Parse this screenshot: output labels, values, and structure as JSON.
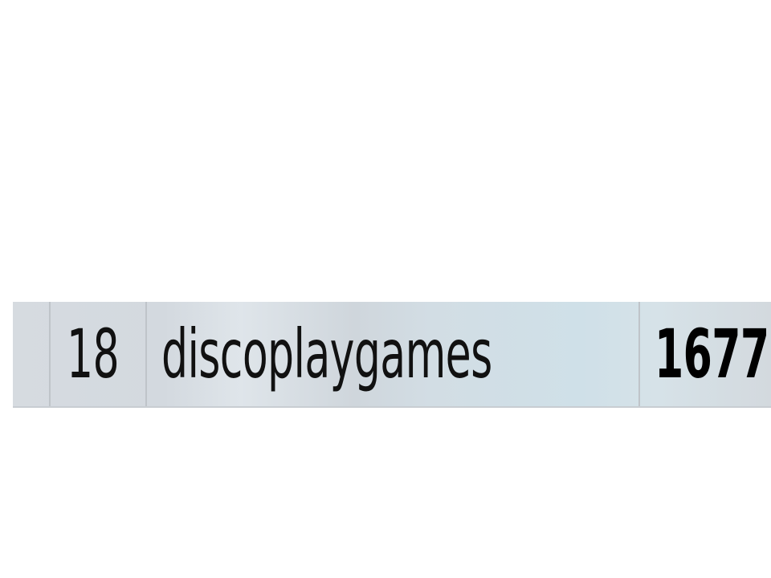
{
  "leaderboard_row": {
    "rank": "18",
    "username": "discoplaygames",
    "score": "1677"
  }
}
